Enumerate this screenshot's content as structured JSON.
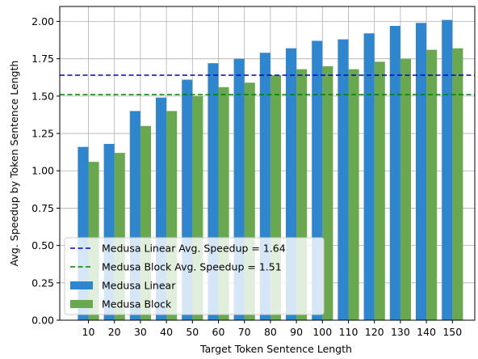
{
  "chart_data": {
    "type": "bar",
    "xlabel": "Target Token Sentence Length",
    "ylabel": "Avg. Speedup by Token Sentence Length",
    "categories": [
      "10",
      "20",
      "30",
      "40",
      "50",
      "60",
      "70",
      "80",
      "90",
      "100",
      "110",
      "120",
      "130",
      "140",
      "150"
    ],
    "series": [
      {
        "name": "Medusa Linear",
        "color": "#2e86cf",
        "values": [
          1.16,
          1.18,
          1.4,
          1.49,
          1.61,
          1.72,
          1.75,
          1.79,
          1.82,
          1.87,
          1.88,
          1.92,
          1.97,
          1.99,
          2.01
        ]
      },
      {
        "name": "Medusa Block",
        "color": "#6aa84f",
        "values": [
          1.06,
          1.12,
          1.3,
          1.4,
          1.5,
          1.56,
          1.59,
          1.64,
          1.68,
          1.7,
          1.68,
          1.73,
          1.75,
          1.81,
          1.82
        ]
      }
    ],
    "reference_lines": [
      {
        "label": "Medusa Linear Avg. Speedup = 1.64",
        "value": 1.64,
        "color": "#0000cc",
        "style": "dashed"
      },
      {
        "label": "Medusa Block Avg. Speedup = 1.51",
        "value": 1.51,
        "color": "#008000",
        "style": "dashed"
      }
    ],
    "yticks": [
      "0.00",
      "0.25",
      "0.50",
      "0.75",
      "1.00",
      "1.25",
      "1.50",
      "1.75",
      "2.00"
    ],
    "ylim": [
      0,
      2.1
    ],
    "grid": true,
    "legend_position": "lower-left"
  }
}
